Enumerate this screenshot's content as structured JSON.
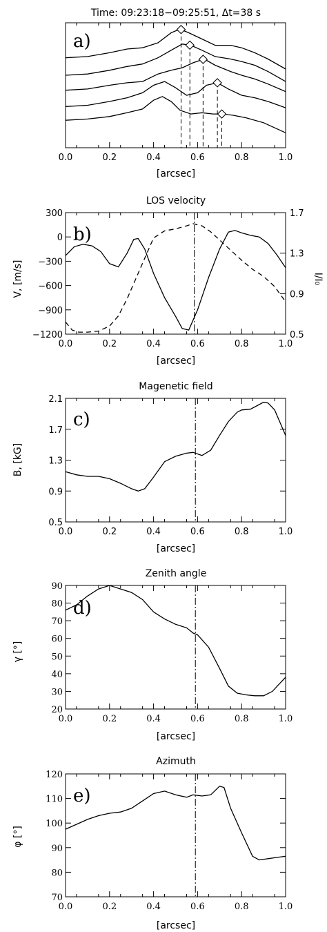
{
  "chart_data": [
    {
      "id": "a",
      "type": "line",
      "panel_label": "a)",
      "title": "Time: 09:23:18−09:25:51, Δt=38 s",
      "xlabel": "[arcsec]",
      "xlim": [
        0,
        1
      ],
      "xticks": [
        "0.0",
        "0.2",
        "0.4",
        "0.6",
        "0.8",
        "1.0"
      ],
      "ylim": [
        0,
        1
      ],
      "y_tick_labels": false,
      "series": [
        {
          "x": [
            0,
            0.1,
            0.2,
            0.28,
            0.35,
            0.42,
            0.48,
            0.52,
            0.56,
            0.62,
            0.68,
            0.75,
            0.8,
            0.86,
            0.92,
            1.0
          ],
          "y": [
            0.72,
            0.73,
            0.76,
            0.79,
            0.8,
            0.84,
            0.92,
            0.95,
            0.92,
            0.87,
            0.82,
            0.82,
            0.8,
            0.76,
            0.71,
            0.63
          ],
          "marker_x": 0.525
        },
        {
          "x": [
            0,
            0.1,
            0.2,
            0.28,
            0.35,
            0.42,
            0.48,
            0.53,
            0.57,
            0.62,
            0.68,
            0.75,
            0.8,
            0.86,
            0.92,
            1.0
          ],
          "y": [
            0.58,
            0.59,
            0.62,
            0.65,
            0.67,
            0.72,
            0.78,
            0.83,
            0.82,
            0.78,
            0.73,
            0.71,
            0.69,
            0.66,
            0.61,
            0.53
          ],
          "marker_x": 0.565
        },
        {
          "x": [
            0,
            0.1,
            0.2,
            0.28,
            0.35,
            0.42,
            0.48,
            0.53,
            0.58,
            0.63,
            0.68,
            0.75,
            0.8,
            0.86,
            0.92,
            1.0
          ],
          "y": [
            0.46,
            0.47,
            0.5,
            0.52,
            0.53,
            0.59,
            0.62,
            0.64,
            0.68,
            0.71,
            0.66,
            0.61,
            0.58,
            0.55,
            0.51,
            0.45
          ],
          "marker_x": 0.625
        },
        {
          "x": [
            0,
            0.1,
            0.2,
            0.28,
            0.35,
            0.4,
            0.45,
            0.5,
            0.55,
            0.6,
            0.64,
            0.69,
            0.74,
            0.8,
            0.86,
            0.92,
            1.0
          ],
          "y": [
            0.33,
            0.34,
            0.37,
            0.4,
            0.44,
            0.5,
            0.53,
            0.48,
            0.42,
            0.44,
            0.5,
            0.52,
            0.47,
            0.42,
            0.4,
            0.37,
            0.32
          ],
          "marker_x": 0.69
        },
        {
          "x": [
            0,
            0.1,
            0.2,
            0.28,
            0.35,
            0.4,
            0.44,
            0.48,
            0.52,
            0.57,
            0.62,
            0.67,
            0.71,
            0.76,
            0.82,
            0.9,
            1.0
          ],
          "y": [
            0.22,
            0.23,
            0.25,
            0.28,
            0.31,
            0.38,
            0.41,
            0.37,
            0.3,
            0.27,
            0.28,
            0.27,
            0.27,
            0.26,
            0.24,
            0.2,
            0.12
          ],
          "marker_x": 0.71
        }
      ]
    },
    {
      "id": "b",
      "type": "line",
      "panel_label": "b)",
      "title": "LOS velocity",
      "xlabel": "[arcsec]",
      "ylabel": "V, [m/s]",
      "y2label": "I/I₀",
      "xlim": [
        0,
        1
      ],
      "xticks": [
        "0.0",
        "0.2",
        "0.4",
        "0.6",
        "0.8",
        "1.0"
      ],
      "ylim": [
        -1200,
        300
      ],
      "yticks": [
        -1200,
        -900,
        -600,
        -300,
        0,
        300
      ],
      "y2lim": [
        0.5,
        1.7
      ],
      "y2ticks": [
        "0.5",
        "0.9",
        "1.3",
        "1.7"
      ],
      "vline_x": 0.585,
      "series": [
        {
          "name": "V",
          "style": "solid",
          "x": [
            0,
            0.04,
            0.08,
            0.12,
            0.16,
            0.2,
            0.24,
            0.28,
            0.31,
            0.33,
            0.36,
            0.4,
            0.45,
            0.5,
            0.53,
            0.56,
            0.6,
            0.65,
            0.7,
            0.74,
            0.77,
            0.8,
            0.84,
            0.88,
            0.92,
            0.96,
            1.0
          ],
          "y": [
            -230,
            -120,
            -90,
            -110,
            -180,
            -330,
            -370,
            -200,
            -30,
            -20,
            -150,
            -450,
            -750,
            -980,
            -1130,
            -1150,
            -900,
            -500,
            -150,
            60,
            80,
            50,
            20,
            0,
            -80,
            -220,
            -380
          ]
        },
        {
          "name": "I/I0",
          "style": "dashed",
          "axis": "right",
          "x": [
            0,
            0.03,
            0.06,
            0.1,
            0.15,
            0.2,
            0.24,
            0.28,
            0.32,
            0.36,
            0.4,
            0.45,
            0.5,
            0.55,
            0.58,
            0.62,
            0.66,
            0.7,
            0.75,
            0.8,
            0.85,
            0.9,
            0.95,
            1.0
          ],
          "y": [
            0.62,
            0.54,
            0.52,
            0.52,
            0.53,
            0.58,
            0.68,
            0.85,
            1.05,
            1.25,
            1.45,
            1.52,
            1.54,
            1.57,
            1.59,
            1.57,
            1.51,
            1.43,
            1.33,
            1.23,
            1.14,
            1.07,
            0.97,
            0.82
          ]
        }
      ]
    },
    {
      "id": "c",
      "type": "line",
      "panel_label": "c)",
      "title": "Magenetic field",
      "xlabel": "[arcsec]",
      "ylabel": "B, [kG]",
      "xlim": [
        0,
        1
      ],
      "xticks": [
        "0.0",
        "0.2",
        "0.4",
        "0.6",
        "0.8",
        "1.0"
      ],
      "ylim": [
        0.5,
        2.1
      ],
      "yticks": [
        "0.5",
        "0.9",
        "1.3",
        "1.7",
        "2.1"
      ],
      "vline_x": 0.59,
      "series": [
        {
          "x": [
            0,
            0.05,
            0.1,
            0.15,
            0.2,
            0.25,
            0.3,
            0.33,
            0.36,
            0.4,
            0.45,
            0.5,
            0.55,
            0.58,
            0.62,
            0.66,
            0.7,
            0.74,
            0.78,
            0.8,
            0.84,
            0.88,
            0.9,
            0.92,
            0.95,
            1.0
          ],
          "y": [
            1.15,
            1.11,
            1.09,
            1.09,
            1.06,
            1.0,
            0.93,
            0.9,
            0.93,
            1.08,
            1.28,
            1.35,
            1.39,
            1.4,
            1.36,
            1.43,
            1.62,
            1.8,
            1.92,
            1.95,
            1.96,
            2.02,
            2.05,
            2.04,
            1.95,
            1.62
          ]
        }
      ]
    },
    {
      "id": "d",
      "type": "line",
      "panel_label": "d)",
      "title": "Zenith angle",
      "xlabel": "[arcsec]",
      "ylabel": "γ [°]",
      "xlim": [
        0,
        1
      ],
      "xticks": [
        "0.0",
        "0.2",
        "0.4",
        "0.6",
        "0.8",
        "1.0"
      ],
      "ylim": [
        20,
        90
      ],
      "yticks": [
        20,
        30,
        40,
        50,
        60,
        70,
        80,
        90
      ],
      "vline_x": 0.59,
      "series": [
        {
          "x": [
            0,
            0.05,
            0.1,
            0.15,
            0.2,
            0.25,
            0.3,
            0.35,
            0.4,
            0.45,
            0.5,
            0.55,
            0.58,
            0.6,
            0.65,
            0.7,
            0.74,
            0.78,
            0.82,
            0.86,
            0.9,
            0.94,
            0.97,
            1.0
          ],
          "y": [
            76,
            79,
            84,
            88,
            90,
            88,
            86,
            82,
            75,
            71,
            68,
            66,
            63,
            62,
            55,
            43,
            33,
            29,
            28,
            27.5,
            27.5,
            30,
            34,
            38
          ]
        }
      ]
    },
    {
      "id": "e",
      "type": "line",
      "panel_label": "e)",
      "title": "Azimuth",
      "xlabel": "[arcsec]",
      "ylabel": "φ [°]",
      "xlim": [
        0,
        1
      ],
      "xticks": [
        "0.0",
        "0.2",
        "0.4",
        "0.6",
        "0.8",
        "1.0"
      ],
      "ylim": [
        70,
        120
      ],
      "yticks": [
        70,
        80,
        90,
        100,
        110,
        120
      ],
      "vline_x": 0.59,
      "series": [
        {
          "x": [
            0,
            0.05,
            0.1,
            0.15,
            0.2,
            0.25,
            0.3,
            0.35,
            0.4,
            0.45,
            0.5,
            0.55,
            0.58,
            0.62,
            0.66,
            0.7,
            0.72,
            0.75,
            0.8,
            0.85,
            0.88,
            0.92,
            0.96,
            1.0
          ],
          "y": [
            97.5,
            99.5,
            101.5,
            103,
            104,
            104.5,
            106,
            109,
            112,
            113,
            111.5,
            110.5,
            111.5,
            111,
            111.5,
            115,
            114.5,
            106,
            96,
            86.5,
            85,
            85.5,
            86,
            86.5
          ]
        }
      ]
    }
  ]
}
